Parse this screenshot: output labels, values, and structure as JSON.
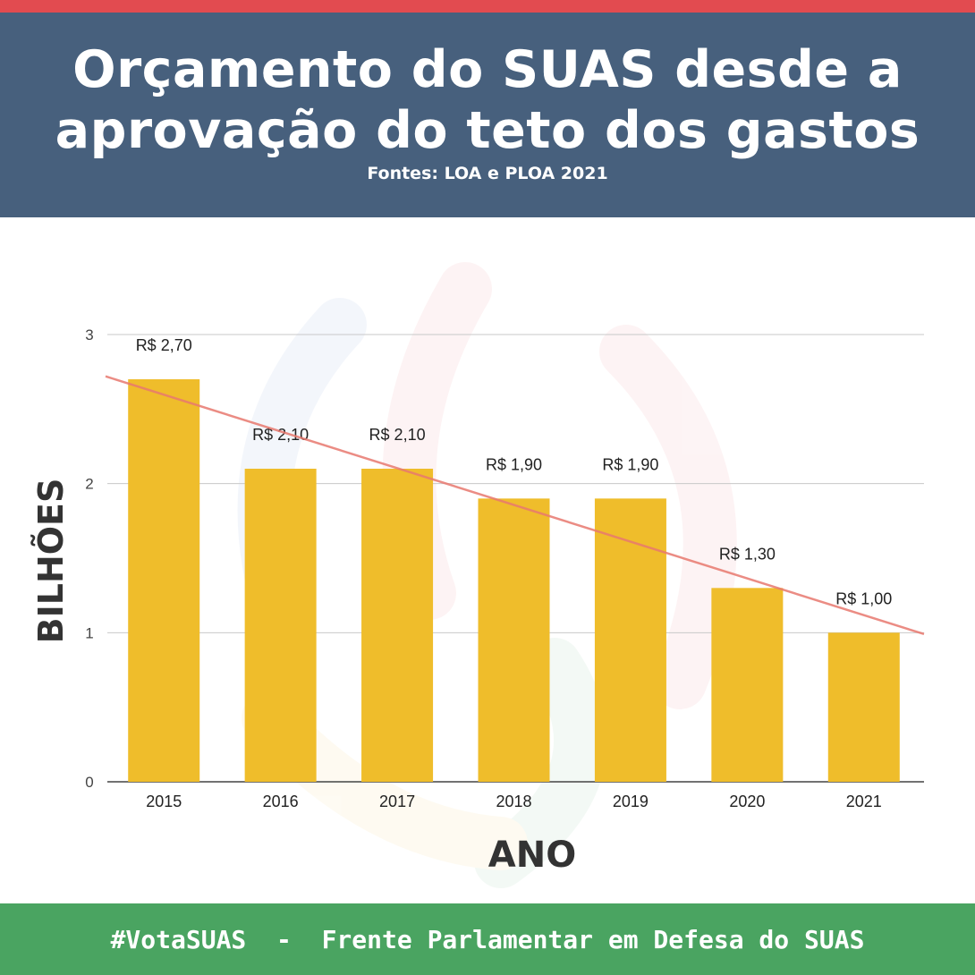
{
  "header": {
    "title_line1": "Orçamento do SUAS desde a",
    "title_line2": "aprovação do teto dos gastos",
    "source": "Fontes: LOA e PLOA 2021"
  },
  "footer": {
    "text": "#VotaSUAS  -  Frente Parlamentar em Defesa do SUAS"
  },
  "colors": {
    "top_stripe": "#e24b50",
    "header_bg": "#47607d",
    "footer_bg": "#4aa461",
    "bar": "#efbd2b",
    "trendline": "#e8796f"
  },
  "chart_data": {
    "type": "bar",
    "categories": [
      "2015",
      "2016",
      "2017",
      "2018",
      "2019",
      "2020",
      "2021"
    ],
    "values": [
      2.7,
      2.1,
      2.1,
      1.9,
      1.9,
      1.3,
      1.0
    ],
    "data_labels": [
      "R$ 2,70",
      "R$ 2,10",
      "R$ 2,10",
      "R$ 1,90",
      "R$ 1,90",
      "R$ 1,30",
      "R$ 1,00"
    ],
    "xlabel": "ANO",
    "ylabel": "BILHÕES",
    "ylim": [
      0,
      3
    ],
    "yticks": [
      "0",
      "1",
      "2",
      "3"
    ],
    "grid": true,
    "legend": "none",
    "trendline": true
  }
}
